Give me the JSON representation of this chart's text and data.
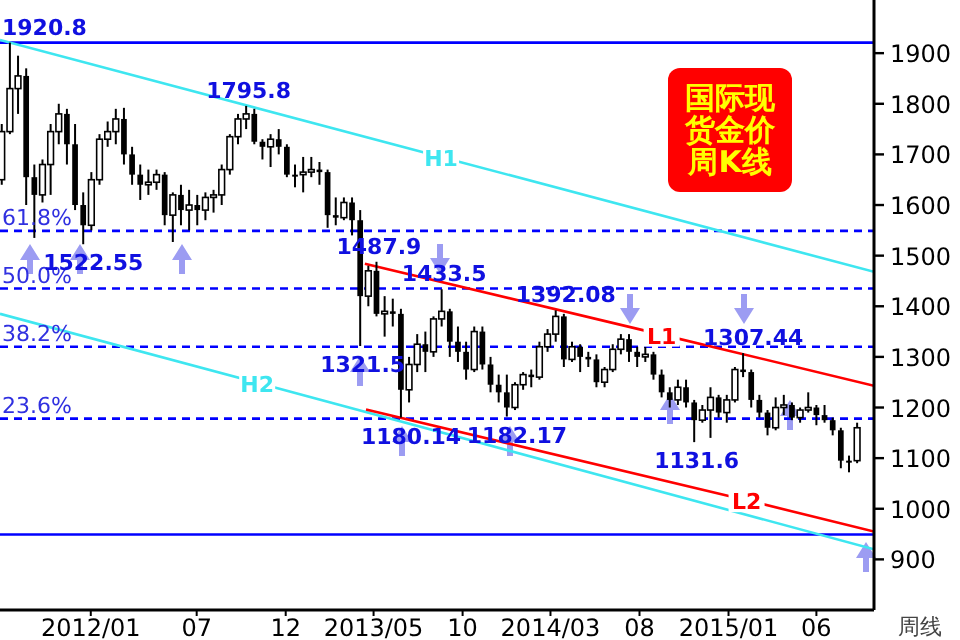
{
  "chart_data": {
    "type": "candlestick",
    "title": "国际现货金价周K线",
    "xlabel": "周线",
    "xlim": [
      "2011-07-29",
      "2015-09-08"
    ],
    "ylim": [
      800,
      2005
    ],
    "yticks": [
      900,
      1000,
      1100,
      1200,
      1300,
      1400,
      1500,
      1600,
      1700,
      1800,
      1900
    ],
    "xticks": [
      {
        "value": "2012-01-01",
        "label": "2012/01"
      },
      {
        "value": "2012-07-01",
        "label": "07"
      },
      {
        "value": "2012-12-01",
        "label": "12"
      },
      {
        "value": "2013-05-01",
        "label": "2013/05"
      },
      {
        "value": "2013-10-01",
        "label": "10"
      },
      {
        "value": "2014-03-01",
        "label": "2014/03"
      },
      {
        "value": "2014-08-01",
        "label": "08"
      },
      {
        "value": "2015-01-01",
        "label": "2015/01"
      },
      {
        "value": "2015-06-01",
        "label": "06"
      }
    ],
    "grid": false,
    "legend": false,
    "series": [
      {
        "color": "#000000",
        "x": [
          "2011-08-01",
          "2011-08-15",
          "2011-08-29",
          "2011-09-12",
          "2011-09-26",
          "2011-10-10",
          "2011-10-24",
          "2011-11-07",
          "2011-11-21",
          "2011-12-05",
          "2011-12-19",
          "2012-01-02",
          "2012-01-16",
          "2012-01-30",
          "2012-02-13",
          "2012-02-27",
          "2012-03-12",
          "2012-03-26",
          "2012-04-09",
          "2012-04-23",
          "2012-05-07",
          "2012-05-21",
          "2012-06-04",
          "2012-06-18",
          "2012-07-02",
          "2012-07-16",
          "2012-07-30",
          "2012-08-13",
          "2012-08-27",
          "2012-09-10",
          "2012-09-24",
          "2012-10-08",
          "2012-10-22",
          "2012-11-05",
          "2012-11-19",
          "2012-12-03",
          "2012-12-17",
          "2012-12-31",
          "2013-01-14",
          "2013-01-28",
          "2013-02-11",
          "2013-02-25",
          "2013-03-11",
          "2013-03-25",
          "2013-04-08",
          "2013-04-22",
          "2013-05-06",
          "2013-05-20",
          "2013-06-03",
          "2013-06-17",
          "2013-07-01",
          "2013-07-15",
          "2013-07-29",
          "2013-08-12",
          "2013-08-26",
          "2013-09-09",
          "2013-09-23",
          "2013-10-07",
          "2013-10-21",
          "2013-11-04",
          "2013-11-18",
          "2013-12-02",
          "2013-12-16",
          "2013-12-30",
          "2014-01-13",
          "2014-01-27",
          "2014-02-10",
          "2014-02-24",
          "2014-03-10",
          "2014-03-24",
          "2014-04-07",
          "2014-04-21",
          "2014-05-05",
          "2014-05-19",
          "2014-06-02",
          "2014-06-16",
          "2014-06-30",
          "2014-07-14",
          "2014-07-28",
          "2014-08-11",
          "2014-08-25",
          "2014-09-08",
          "2014-09-22",
          "2014-10-06",
          "2014-10-20",
          "2014-11-03",
          "2014-11-17",
          "2014-12-01",
          "2014-12-15",
          "2014-12-29",
          "2015-01-12",
          "2015-01-26",
          "2015-02-09",
          "2015-02-23",
          "2015-03-09",
          "2015-03-23",
          "2015-04-06",
          "2015-04-20",
          "2015-05-04",
          "2015-05-18",
          "2015-06-01",
          "2015-06-15",
          "2015-06-29",
          "2015-07-13",
          "2015-07-27",
          "2015-08-10"
        ],
        "ohlc": [
          [
            1650,
            1760,
            1640,
            1745
          ],
          [
            1745,
            1920.8,
            1740,
            1830
          ],
          [
            1830,
            1895,
            1780,
            1855
          ],
          [
            1855,
            1870,
            1600,
            1655
          ],
          [
            1655,
            1680,
            1535,
            1620
          ],
          [
            1620,
            1690,
            1605,
            1680
          ],
          [
            1680,
            1760,
            1620,
            1745
          ],
          [
            1745,
            1800,
            1720,
            1780
          ],
          [
            1780,
            1790,
            1680,
            1720
          ],
          [
            1720,
            1760,
            1590,
            1600
          ],
          [
            1600,
            1625,
            1522.55,
            1560
          ],
          [
            1560,
            1665,
            1550,
            1650
          ],
          [
            1650,
            1740,
            1640,
            1730
          ],
          [
            1730,
            1765,
            1715,
            1745
          ],
          [
            1745,
            1790,
            1720,
            1770
          ],
          [
            1770,
            1792,
            1680,
            1700
          ],
          [
            1700,
            1715,
            1640,
            1660
          ],
          [
            1660,
            1680,
            1610,
            1640
          ],
          [
            1640,
            1670,
            1620,
            1645
          ],
          [
            1645,
            1670,
            1630,
            1660
          ],
          [
            1660,
            1665,
            1560,
            1580
          ],
          [
            1580,
            1625,
            1527,
            1620
          ],
          [
            1620,
            1640,
            1560,
            1590
          ],
          [
            1590,
            1630,
            1550,
            1600
          ],
          [
            1600,
            1620,
            1560,
            1590
          ],
          [
            1590,
            1625,
            1570,
            1615
          ],
          [
            1615,
            1630,
            1585,
            1620
          ],
          [
            1620,
            1680,
            1600,
            1670
          ],
          [
            1670,
            1740,
            1660,
            1735
          ],
          [
            1735,
            1780,
            1720,
            1770
          ],
          [
            1770,
            1795.8,
            1750,
            1780
          ],
          [
            1780,
            1790,
            1720,
            1725
          ],
          [
            1725,
            1730,
            1690,
            1715
          ],
          [
            1715,
            1740,
            1675,
            1730
          ],
          [
            1730,
            1750,
            1700,
            1715
          ],
          [
            1715,
            1720,
            1655,
            1660
          ],
          [
            1660,
            1680,
            1635,
            1660
          ],
          [
            1660,
            1695,
            1625,
            1665
          ],
          [
            1665,
            1695,
            1655,
            1670
          ],
          [
            1670,
            1685,
            1640,
            1665
          ],
          [
            1665,
            1670,
            1555,
            1580
          ],
          [
            1580,
            1615,
            1560,
            1575
          ],
          [
            1575,
            1615,
            1570,
            1605
          ],
          [
            1605,
            1615,
            1540,
            1570
          ],
          [
            1570,
            1590,
            1321.5,
            1420
          ],
          [
            1420,
            1480,
            1400,
            1470
          ],
          [
            1470,
            1487.9,
            1380,
            1385
          ],
          [
            1385,
            1420,
            1340,
            1390
          ],
          [
            1390,
            1415,
            1360,
            1385
          ],
          [
            1385,
            1395,
            1180.14,
            1235
          ],
          [
            1235,
            1300,
            1210,
            1285
          ],
          [
            1285,
            1345,
            1270,
            1325
          ],
          [
            1325,
            1350,
            1270,
            1310
          ],
          [
            1310,
            1380,
            1300,
            1375
          ],
          [
            1375,
            1433.5,
            1360,
            1390
          ],
          [
            1390,
            1395,
            1300,
            1330
          ],
          [
            1330,
            1360,
            1290,
            1310
          ],
          [
            1310,
            1330,
            1255,
            1275
          ],
          [
            1275,
            1360,
            1270,
            1350
          ],
          [
            1350,
            1360,
            1275,
            1285
          ],
          [
            1285,
            1300,
            1230,
            1245
          ],
          [
            1245,
            1265,
            1210,
            1230
          ],
          [
            1230,
            1265,
            1182.17,
            1200
          ],
          [
            1200,
            1250,
            1195,
            1245
          ],
          [
            1245,
            1270,
            1235,
            1265
          ],
          [
            1265,
            1275,
            1240,
            1260
          ],
          [
            1260,
            1330,
            1255,
            1320
          ],
          [
            1320,
            1355,
            1310,
            1345
          ],
          [
            1345,
            1392.08,
            1330,
            1380
          ],
          [
            1380,
            1385,
            1280,
            1295
          ],
          [
            1295,
            1330,
            1290,
            1320
          ],
          [
            1320,
            1325,
            1270,
            1300
          ],
          [
            1300,
            1310,
            1280,
            1295
          ],
          [
            1295,
            1305,
            1240,
            1250
          ],
          [
            1250,
            1280,
            1240,
            1275
          ],
          [
            1275,
            1325,
            1270,
            1315
          ],
          [
            1315,
            1345,
            1305,
            1335
          ],
          [
            1335,
            1345,
            1290,
            1310
          ],
          [
            1310,
            1320,
            1280,
            1300
          ],
          [
            1300,
            1320,
            1290,
            1305
          ],
          [
            1305,
            1310,
            1255,
            1265
          ],
          [
            1265,
            1275,
            1220,
            1230
          ],
          [
            1230,
            1240,
            1200,
            1215
          ],
          [
            1215,
            1255,
            1205,
            1240
          ],
          [
            1240,
            1255,
            1200,
            1210
          ],
          [
            1210,
            1215,
            1131.6,
            1175
          ],
          [
            1175,
            1205,
            1170,
            1195
          ],
          [
            1195,
            1240,
            1140,
            1220
          ],
          [
            1220,
            1225,
            1180,
            1190
          ],
          [
            1190,
            1225,
            1170,
            1215
          ],
          [
            1215,
            1280,
            1210,
            1275
          ],
          [
            1275,
            1307.44,
            1260,
            1270
          ],
          [
            1270,
            1275,
            1200,
            1215
          ],
          [
            1215,
            1225,
            1180,
            1190
          ],
          [
            1190,
            1195,
            1145,
            1160
          ],
          [
            1160,
            1220,
            1155,
            1200
          ],
          [
            1200,
            1225,
            1185,
            1205
          ],
          [
            1205,
            1210,
            1175,
            1180
          ],
          [
            1180,
            1200,
            1170,
            1195
          ],
          [
            1195,
            1230,
            1190,
            1200
          ],
          [
            1200,
            1205,
            1165,
            1185
          ],
          [
            1185,
            1205,
            1170,
            1175
          ],
          [
            1175,
            1180,
            1145,
            1155
          ],
          [
            1155,
            1160,
            1080,
            1095
          ],
          [
            1095,
            1105,
            1072,
            1095
          ],
          [
            1095,
            1170,
            1090,
            1160
          ]
        ]
      },
      {
        "type": "line",
        "name": "H1",
        "color": "#3ee6f0",
        "x": [
          "2011-07-29",
          "2013-08-25",
          "2015-09-08"
        ],
        "values": [
          1926,
          1695,
          1468
        ]
      },
      {
        "type": "line",
        "name": "H2",
        "color": "#3ee6f0",
        "x": [
          "2011-07-29",
          "2012-10-13",
          "2015-09-08"
        ],
        "values": [
          1385,
          1249,
          920
        ]
      },
      {
        "type": "line",
        "name": "L1",
        "color": "#ff0000",
        "x": [
          "2013-04-16",
          "2014-09-08",
          "2015-09-08"
        ],
        "values": [
          1484,
          1344,
          1243
        ]
      },
      {
        "type": "line",
        "name": "L2",
        "color": "#ff0000",
        "x": [
          "2013-04-18",
          "2015-02-01",
          "2015-09-08"
        ],
        "values": [
          1196,
          1017,
          955
        ]
      }
    ],
    "ref_lines": [
      {
        "axis": "y",
        "value": 1920.8,
        "color": "#0000ff",
        "line_style": "solid"
      },
      {
        "axis": "y",
        "value": 1549,
        "color": "#0000ff",
        "line_style": "dashed"
      },
      {
        "axis": "y",
        "value": 1435,
        "color": "#0000ff",
        "line_style": "dashed"
      },
      {
        "axis": "y",
        "value": 1320,
        "color": "#0000ff",
        "line_style": "dashed"
      },
      {
        "axis": "y",
        "value": 1178,
        "color": "#0000ff",
        "line_style": "dashed"
      },
      {
        "axis": "y",
        "value": 949,
        "color": "#0000ff",
        "line_style": "solid"
      }
    ],
    "annotations": [
      {
        "text": "61.8%",
        "x": "2011-07-29",
        "y": 1549
      },
      {
        "text": "50.0%",
        "x": "2011-07-29",
        "y": 1435
      },
      {
        "text": "38.2%",
        "x": "2011-07-29",
        "y": 1320
      },
      {
        "text": "23.6%",
        "x": "2011-07-29",
        "y": 1178
      },
      {
        "text": "1920.8",
        "x": "2011-08-15",
        "y": 1920.8
      },
      {
        "text": "1522.55",
        "x": "2011-12-19",
        "y": 1522.55
      },
      {
        "text": "1795.8",
        "x": "2012-09-24",
        "y": 1795.8
      },
      {
        "text": "1321.5",
        "x": "2013-04-08",
        "y": 1321.5
      },
      {
        "text": "1487.9",
        "x": "2013-05-06",
        "y": 1487.9
      },
      {
        "text": "1180.14",
        "x": "2013-06-17",
        "y": 1180.14
      },
      {
        "text": "1433.5",
        "x": "2013-08-26",
        "y": 1433.5
      },
      {
        "text": "1182.17",
        "x": "2013-12-16",
        "y": 1182.17
      },
      {
        "text": "1392.08",
        "x": "2014-03-10",
        "y": 1392.08
      },
      {
        "text": "1131.6",
        "x": "2014-11-03",
        "y": 1131.6
      },
      {
        "text": "1307.44",
        "x": "2015-01-26",
        "y": 1307.44
      }
    ]
  }
}
